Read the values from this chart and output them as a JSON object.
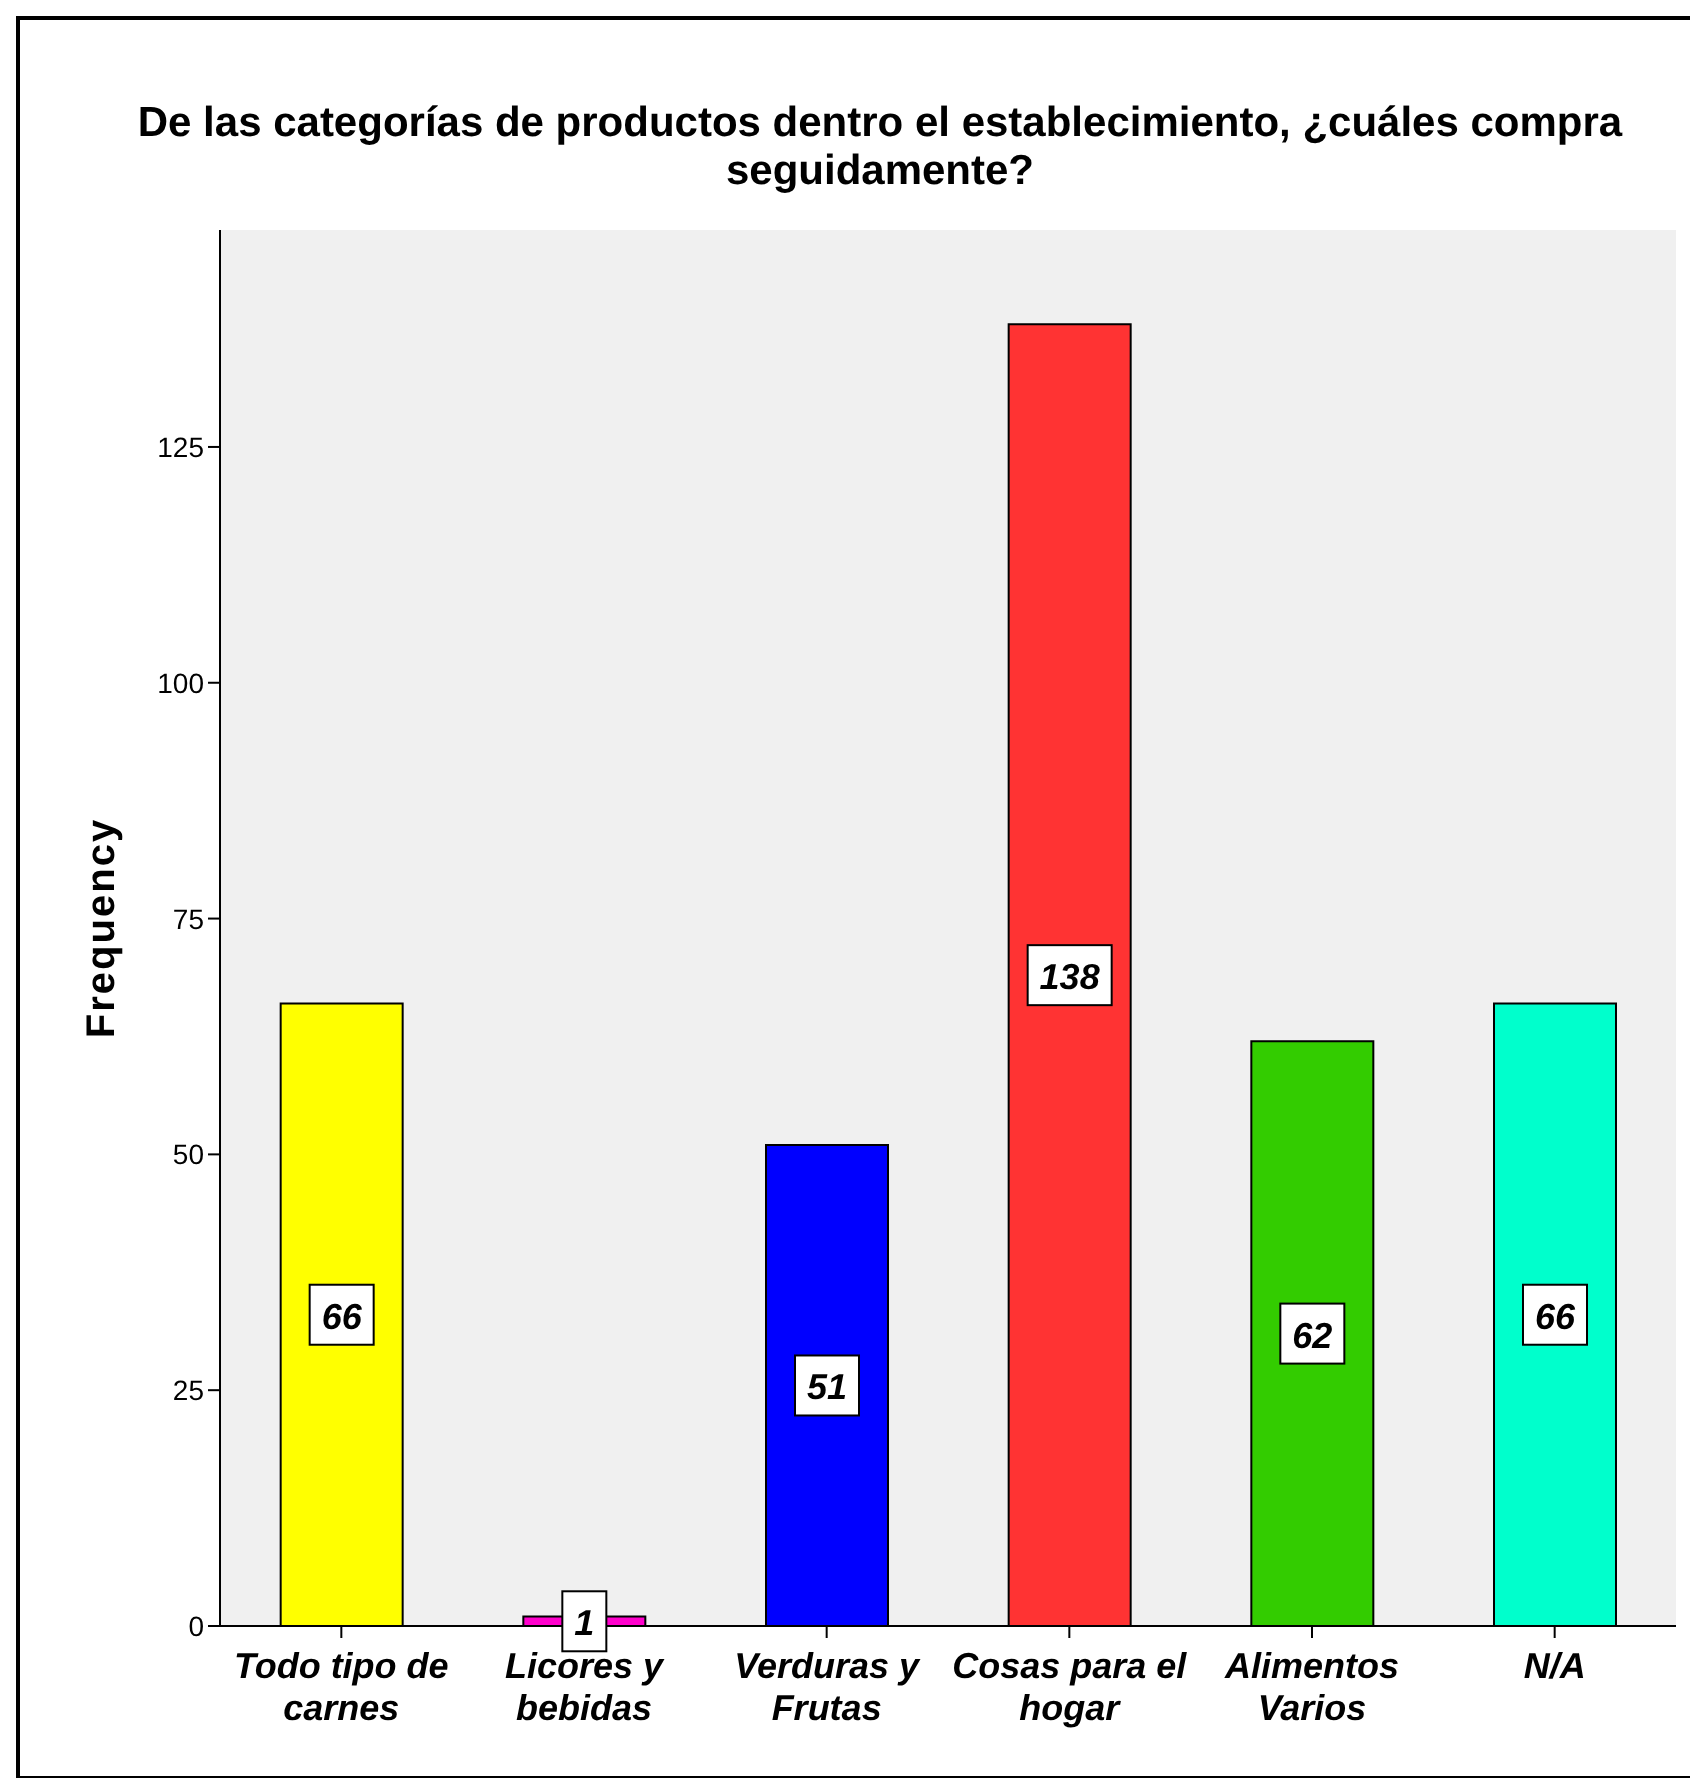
{
  "chart_data": {
    "type": "bar",
    "title": "De las categorías de productos dentro el establecimiento, ¿cuáles compra seguidamente?",
    "ylabel": "Frequency",
    "categories": [
      "Todo tipo de carnes",
      "Licores y bebidas",
      "Verduras y Frutas",
      "Cosas para el hogar",
      "Alimentos Varios",
      "N/A"
    ],
    "values": [
      66,
      1,
      51,
      138,
      62,
      66
    ],
    "colors": [
      "#ffff00",
      "#ff00cc",
      "#0000ff",
      "#ff3333",
      "#33cc00",
      "#00ffcc"
    ],
    "ylim": [
      0,
      148
    ],
    "yticks": [
      0,
      25,
      50,
      75,
      100,
      125
    ],
    "data_labels": true
  }
}
